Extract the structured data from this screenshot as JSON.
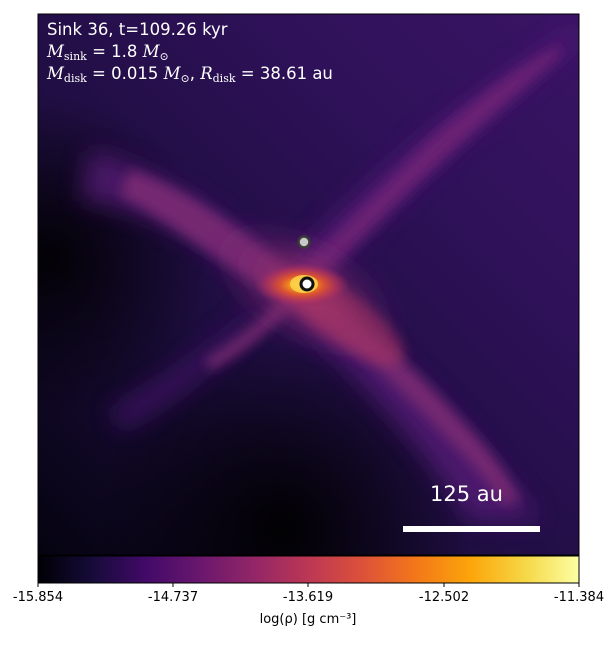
{
  "annotation": {
    "line1": "Sink 36, t=109.26 kyr",
    "m_sink_symbol": "M",
    "m_sink_sub": "sink",
    "m_sink_value": " = 1.8 ",
    "m_sun_symbol": "M",
    "m_sun_sub": "⊙",
    "m_disk_symbol": "M",
    "m_disk_sub": "disk",
    "m_disk_value": " = 0.015 ",
    "r_disk_symbol": "R",
    "r_disk_sub": "disk",
    "r_disk_value": " = 38.61 ",
    "r_disk_unit": "au"
  },
  "scalebar": {
    "label": "125 au"
  },
  "colorbar": {
    "ticks": [
      "-15.854",
      "-14.737",
      "-13.619",
      "-12.502",
      "-11.384"
    ],
    "label": "log(ρ) [g cm⁻³]",
    "colormap": "inferno",
    "min": -15.854,
    "max": -11.384
  },
  "colors": {
    "background_dark": "#0b0620",
    "filament": "#7a2a72",
    "disk_core": "#f4a020",
    "sink_fill": "#ffffff"
  }
}
